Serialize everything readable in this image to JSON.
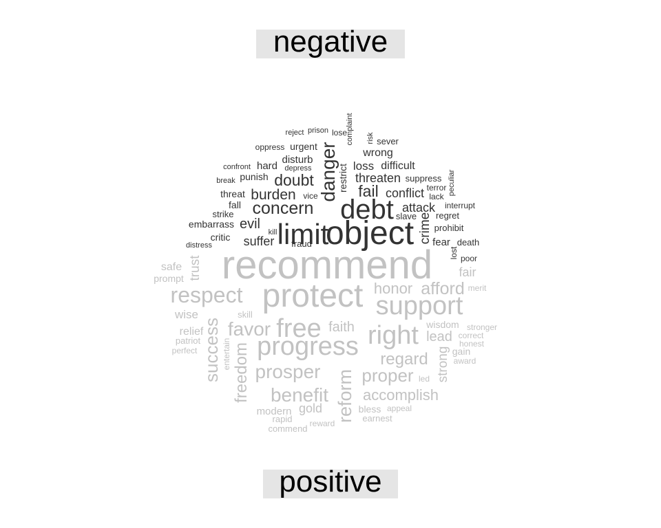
{
  "chart_data": {
    "type": "comparison-wordcloud",
    "colors": {
      "negative": "#333333",
      "positive": "#c2c2c2",
      "label_bg": "#e5e5e5"
    },
    "groups": [
      {
        "key": "negative",
        "label": "negative"
      },
      {
        "key": "positive",
        "label": "positive"
      }
    ],
    "words": {
      "negative": [
        "object",
        "limit",
        "debt",
        "danger",
        "concern",
        "doubt",
        "burden",
        "fail",
        "crime",
        "evil",
        "suffer",
        "threaten",
        "conflict",
        "attack",
        "loss",
        "difficult",
        "wrong",
        "disturb",
        "urgent",
        "hard",
        "punish",
        "threat",
        "fall",
        "embarrass",
        "critic",
        "strike",
        "fear",
        "regret",
        "prohibit",
        "suppress",
        "lack",
        "terror",
        "slave",
        "interrupt",
        "death",
        "lost",
        "poor",
        "peculiar",
        "restrict",
        "complaint",
        "risk",
        "sever",
        "reject",
        "prison",
        "lose",
        "oppress",
        "confront",
        "depress",
        "break",
        "vice",
        "kill",
        "fraud",
        "distress"
      ],
      "positive": [
        "recommend",
        "protect",
        "support",
        "progress",
        "free",
        "right",
        "respect",
        "favor",
        "honor",
        "afford",
        "prosper",
        "benefit",
        "proper",
        "regard",
        "accomplish",
        "success",
        "freedom",
        "reform",
        "strong",
        "trust",
        "faith",
        "lead",
        "wisdom",
        "fair",
        "gold",
        "modern",
        "wise",
        "relief",
        "safe",
        "prompt",
        "patriot",
        "perfect",
        "skill",
        "entertain",
        "merit",
        "stronger",
        "correct",
        "honest",
        "gain",
        "award",
        "led",
        "bless",
        "appeal",
        "earnest",
        "rapid",
        "reward",
        "commend"
      ]
    }
  }
}
